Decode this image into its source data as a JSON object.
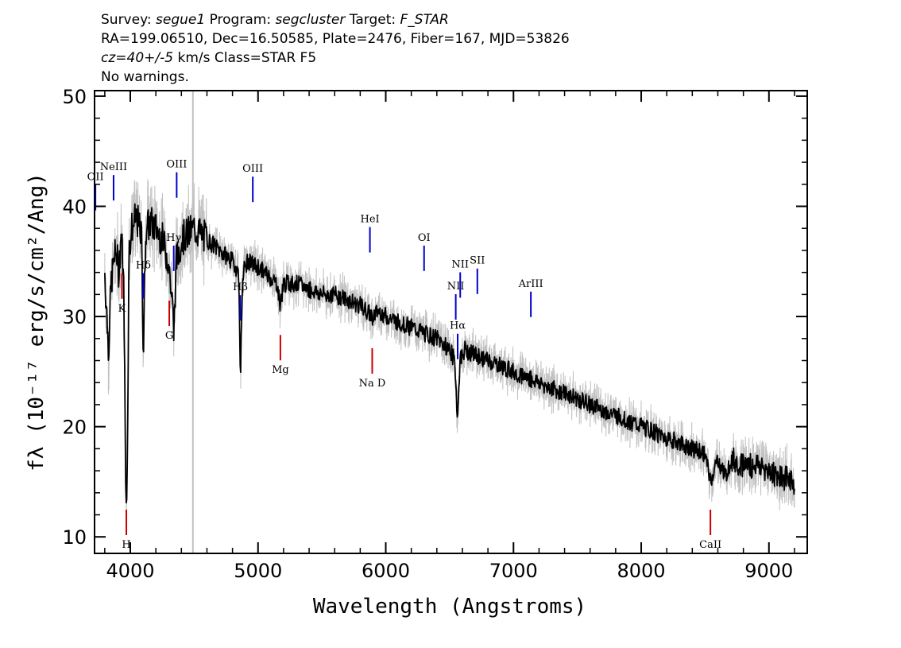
{
  "header": {
    "line1_prefix": "Survey: ",
    "line1_survey": "segue1",
    "line1_mid": " Program: ",
    "line1_program": "segcluster",
    "line1_mid2": " Target: ",
    "line1_target": "F_STAR",
    "line2": "RA=199.06510, Dec=16.50585, Plate=2476, Fiber=167, MJD=53826",
    "line3_cz": "cz=40+/-5",
    "line3_rest": " km/s Class=STAR F5",
    "line4": "No warnings."
  },
  "chart_data": {
    "type": "line",
    "xlabel": "Wavelength (Angstroms)",
    "ylabel": "fλ (10⁻¹⁷ erg/s/cm²/Ang)",
    "xlim": [
      3720,
      9300
    ],
    "ylim": [
      8.5,
      50.5
    ],
    "x_ticks": [
      4000,
      5000,
      6000,
      7000,
      8000,
      9000
    ],
    "x_tick_labels": [
      "4000",
      "5000",
      "6000",
      "7000",
      "8000",
      "9000"
    ],
    "y_ticks": [
      10,
      20,
      30,
      40,
      50
    ],
    "y_tick_labels": [
      "10",
      "20",
      "30",
      "40",
      "50"
    ],
    "marker_vline_x": 4490,
    "series": [
      {
        "role": "flux",
        "color": "#000000",
        "x": [
          3800,
          3830,
          3850,
          3870,
          3890,
          3910,
          3930,
          3950,
          3965,
          3975,
          3990,
          4010,
          4050,
          4090,
          4102,
          4120,
          4160,
          4200,
          4250,
          4300,
          4330,
          4340,
          4360,
          4400,
          4450,
          4500,
          4600,
          4700,
          4800,
          4850,
          4861,
          4880,
          4920,
          5000,
          5050,
          5100,
          5150,
          5172,
          5200,
          5300,
          5400,
          5500,
          5600,
          5700,
          5800,
          5893,
          5950,
          6000,
          6100,
          6200,
          6300,
          6400,
          6500,
          6540,
          6563,
          6580,
          6620,
          6700,
          6800,
          6900,
          7000,
          7100,
          7200,
          7300,
          7400,
          7500,
          7600,
          7700,
          7800,
          7900,
          8000,
          8100,
          8200,
          8300,
          8400,
          8498,
          8542,
          8600,
          8662,
          8700,
          8800,
          8900,
          9000,
          9100,
          9200
        ],
        "y": [
          34,
          27,
          33,
          35,
          36,
          34,
          38,
          32,
          13.5,
          15,
          36,
          38,
          39,
          37,
          26,
          38,
          38.5,
          38,
          37,
          35,
          31,
          28.5,
          35,
          37,
          37.5,
          38,
          37,
          36,
          35,
          34,
          24,
          34,
          35,
          34.5,
          34,
          33.5,
          33,
          31,
          33,
          33,
          32.5,
          32,
          32,
          31.5,
          31,
          30,
          30.5,
          30,
          29.5,
          29,
          28.5,
          28,
          27,
          26,
          20.5,
          26,
          27,
          26.5,
          26,
          25.5,
          25,
          24.5,
          24,
          23.5,
          23,
          22.5,
          22,
          21.5,
          21,
          20.5,
          20,
          19.5,
          19,
          18.5,
          18,
          17.5,
          15,
          17,
          15.5,
          17,
          16.5,
          16.5,
          16,
          15.5,
          15
        ]
      }
    ],
    "emission_lines": [
      {
        "label": "OII",
        "x": 3727
      },
      {
        "label": "NeIII",
        "x": 3869
      },
      {
        "label": "Hδ",
        "x": 4102
      },
      {
        "label": "Hγ",
        "x": 4340
      },
      {
        "label": "OIII",
        "x": 4363
      },
      {
        "label": "Hβ",
        "x": 4861
      },
      {
        "label": "OIII",
        "x": 4959
      },
      {
        "label": "HeI",
        "x": 5876
      },
      {
        "label": "OI",
        "x": 6300
      },
      {
        "label": "NII",
        "x": 6548
      },
      {
        "label": "Hα",
        "x": 6563
      },
      {
        "label": "NII",
        "x": 6583
      },
      {
        "label": "SII",
        "x": 6717
      },
      {
        "label": "ArIII",
        "x": 7136
      }
    ],
    "absorption_lines": [
      {
        "label": "K",
        "x": 3934
      },
      {
        "label": "H",
        "x": 3969
      },
      {
        "label": "G",
        "x": 4305
      },
      {
        "label": "Mg",
        "x": 5175
      },
      {
        "label": "Na D",
        "x": 5894
      },
      {
        "label": "CaII",
        "x": 8542
      }
    ],
    "colors": {
      "flux": "#000000",
      "error_band": "#c0c0c0",
      "emission": "#0000cc",
      "absorption": "#cc0000",
      "vline": "#c0c0c0"
    }
  }
}
